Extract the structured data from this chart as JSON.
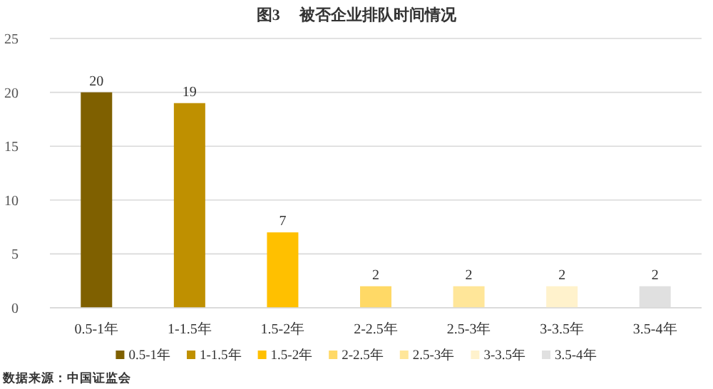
{
  "chart_data": {
    "type": "bar",
    "title": "图3　 被否企业排队时间情况",
    "categories": [
      "0.5-1年",
      "1-1.5年",
      "1.5-2年",
      "2-2.5年",
      "2.5-3年",
      "3-3.5年",
      "3.5-4年"
    ],
    "stacked": true,
    "series": [
      {
        "name": "0.5-1年",
        "color": "#7f6000",
        "values": [
          20,
          null,
          null,
          null,
          null,
          null,
          null
        ]
      },
      {
        "name": "1-1.5年",
        "color": "#bf9000",
        "values": [
          null,
          19,
          null,
          null,
          null,
          null,
          null
        ]
      },
      {
        "name": "1.5-2年",
        "color": "#ffc000",
        "values": [
          null,
          null,
          7,
          null,
          null,
          null,
          null
        ]
      },
      {
        "name": "2-2.5年",
        "color": "#ffd966",
        "values": [
          null,
          null,
          null,
          2,
          null,
          null,
          null
        ]
      },
      {
        "name": "2.5-3年",
        "color": "#ffe699",
        "values": [
          null,
          null,
          null,
          null,
          2,
          null,
          null
        ]
      },
      {
        "name": "3-3.5年",
        "color": "#fff2cc",
        "values": [
          null,
          null,
          null,
          null,
          null,
          2,
          null
        ]
      },
      {
        "name": "3.5-4年",
        "color": "#e0e0e0",
        "values": [
          null,
          null,
          null,
          null,
          null,
          null,
          2
        ]
      }
    ],
    "ylim": [
      0,
      25
    ],
    "yticks": [
      0,
      5,
      10,
      15,
      20,
      25
    ],
    "grid": "y",
    "legend": "bottom",
    "data_labels": true,
    "annotations": [
      "数据来源：中国证监会"
    ]
  }
}
